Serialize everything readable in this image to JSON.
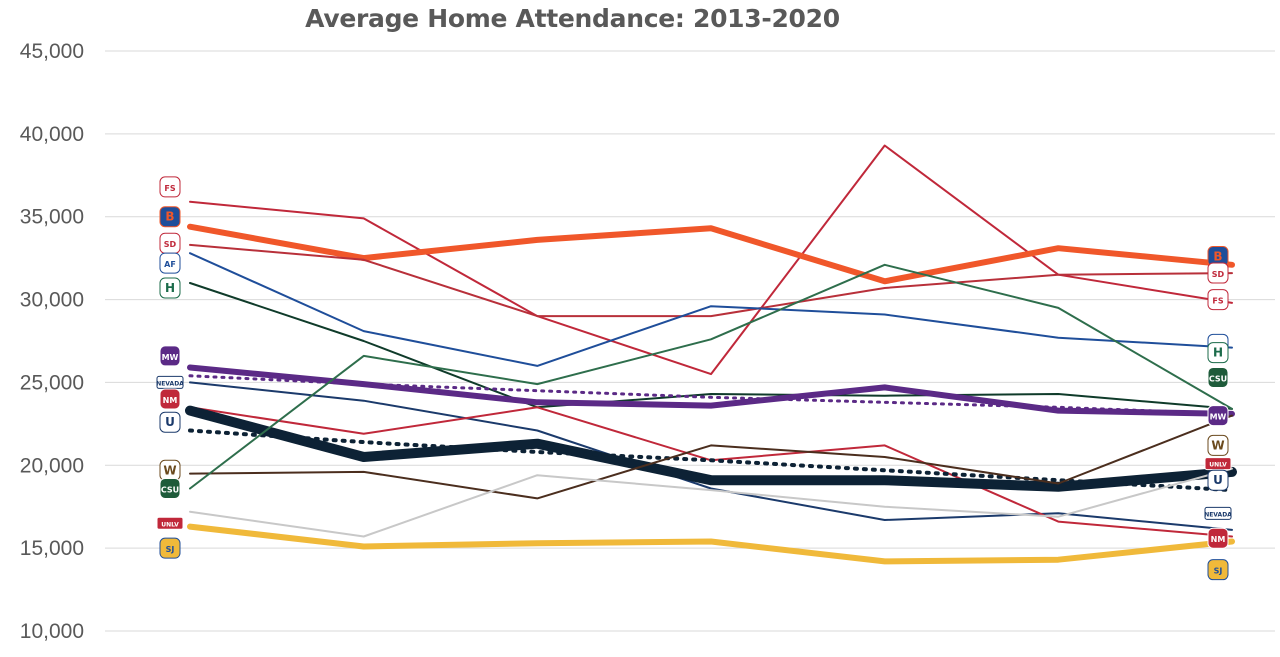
{
  "chart_data": {
    "type": "line",
    "title": "Average Home Attendance: 2013-2020",
    "xlabel": "",
    "ylabel": "",
    "ylim": [
      10000,
      45000
    ],
    "yticks": [
      "10,000",
      "15,000",
      "20,000",
      "25,000",
      "30,000",
      "35,000",
      "40,000",
      "45,000"
    ],
    "ytick_values": [
      10000,
      15000,
      20000,
      25000,
      30000,
      35000,
      40000,
      45000
    ],
    "x_count": 7,
    "grid": true,
    "legend": "team logos at line ends",
    "series": [
      {
        "logo": "fresno-state",
        "color": "#C0283A",
        "width": 2,
        "dash": "",
        "values": [
          35900,
          34900,
          29000,
          25500,
          39300,
          31500,
          29800
        ]
      },
      {
        "logo": "boise-state",
        "color": "#F0572A",
        "width": 6,
        "dash": "",
        "values": [
          34400,
          32500,
          33600,
          34300,
          31100,
          33100,
          32100
        ]
      },
      {
        "logo": "san-diego-state",
        "color": "#B8303A",
        "width": 2,
        "dash": "",
        "values": [
          33300,
          32400,
          29000,
          29000,
          30700,
          31500,
          31600
        ]
      },
      {
        "logo": "air-force",
        "color": "#1F4E9A",
        "width": 2,
        "dash": "",
        "values": [
          32800,
          28100,
          26000,
          29600,
          29100,
          27700,
          27100
        ]
      },
      {
        "logo": "hawaii",
        "color": "#0F3B2A",
        "width": 2,
        "dash": "",
        "values": [
          31000,
          27500,
          23500,
          24300,
          24200,
          24300,
          23400
        ]
      },
      {
        "logo": "mountain-west-avg",
        "color": "#5B2A86",
        "width": 6,
        "dash": "",
        "values": [
          25900,
          24900,
          23800,
          23600,
          24700,
          23300,
          23100
        ]
      },
      {
        "logo": "conference-trend",
        "color": "#5B2A86",
        "width": 3,
        "dash": "2,6",
        "values": [
          25400,
          24900,
          24500,
          24100,
          23800,
          23500,
          23100
        ]
      },
      {
        "logo": "nevada",
        "color": "#1B3A6B",
        "width": 2,
        "dash": "",
        "values": [
          25000,
          23900,
          22100,
          18600,
          16700,
          17100,
          16100
        ]
      },
      {
        "logo": "new-mexico",
        "color": "#C0283A",
        "width": 2,
        "dash": "",
        "values": [
          23500,
          21900,
          23500,
          20300,
          21200,
          16600,
          15700
        ]
      },
      {
        "logo": "fbs-average",
        "color": "#0D2235",
        "width": 10,
        "dash": "",
        "values": [
          23300,
          20500,
          21300,
          19100,
          19100,
          18700,
          19600
        ]
      },
      {
        "logo": "fbs-trend",
        "color": "#0D2235",
        "width": 4,
        "dash": "2,7",
        "values": [
          22100,
          21400,
          20800,
          20300,
          19700,
          19100,
          18500
        ]
      },
      {
        "logo": "wyoming",
        "color": "#4B2E1E",
        "width": 2,
        "dash": "",
        "values": [
          19500,
          19600,
          18000,
          21200,
          20500,
          18900,
          23000
        ]
      },
      {
        "logo": "colorado-state",
        "color": "#2E6E4C",
        "width": 2,
        "dash": "",
        "values": [
          18600,
          26600,
          24900,
          27600,
          32100,
          29500,
          23400
        ]
      },
      {
        "logo": "unlv",
        "color": "#C8C8C8",
        "width": 2,
        "dash": "",
        "values": [
          17200,
          15700,
          19400,
          18500,
          17500,
          16900,
          19800
        ]
      },
      {
        "logo": "san-jose-state",
        "color": "#F0B93A",
        "width": 6,
        "dash": "",
        "values": [
          16300,
          15100,
          15300,
          15400,
          14200,
          14300,
          15400
        ]
      }
    ]
  },
  "logos_left": [
    {
      "name": "fresno-state-logo",
      "text": "FS",
      "bg": "#ffffff",
      "fg": "#C0283A",
      "value": 36800
    },
    {
      "name": "boise-state-logo",
      "text": "B",
      "bg": "#1F4E9A",
      "fg": "#F0572A",
      "value": 35000
    },
    {
      "name": "san-diego-state-logo",
      "text": "SD",
      "bg": "#ffffff",
      "fg": "#C0283A",
      "value": 33400
    },
    {
      "name": "air-force-logo",
      "text": "AF",
      "bg": "#ffffff",
      "fg": "#1F4E9A",
      "value": 32200
    },
    {
      "name": "hawaii-logo",
      "text": "H",
      "bg": "#ffffff",
      "fg": "#1B6B4A",
      "value": 30700
    },
    {
      "name": "mountain-west-logo",
      "text": "MW",
      "bg": "#5B2A86",
      "fg": "#ffffff",
      "value": 26600
    },
    {
      "name": "nevada-logo",
      "text": "NEVADA",
      "bg": "#ffffff",
      "fg": "#1B3A6B",
      "value": 25000
    },
    {
      "name": "new-mexico-logo",
      "text": "NM",
      "bg": "#C0283A",
      "fg": "#ffffff",
      "value": 24000
    },
    {
      "name": "utah-state-logo",
      "text": "U",
      "bg": "#ffffff",
      "fg": "#1B3A6B",
      "value": 22600
    },
    {
      "name": "wyoming-logo",
      "text": "W",
      "bg": "#ffffff",
      "fg": "#6B4A1E",
      "value": 19700
    },
    {
      "name": "colorado-state-logo",
      "text": "CSU",
      "bg": "#1E5B3A",
      "fg": "#ffffff",
      "value": 18600
    },
    {
      "name": "unlv-logo",
      "text": "UNLV",
      "bg": "#C0283A",
      "fg": "#ffffff",
      "value": 16500
    },
    {
      "name": "san-jose-state-logo",
      "text": "SJ",
      "bg": "#F0B93A",
      "fg": "#1F4E9A",
      "value": 15000
    }
  ],
  "logos_right": [
    {
      "name": "boise-state-logo",
      "text": "B",
      "bg": "#1F4E9A",
      "fg": "#F0572A",
      "value": 32600
    },
    {
      "name": "san-diego-state-logo",
      "text": "SD",
      "bg": "#ffffff",
      "fg": "#C0283A",
      "value": 31600
    },
    {
      "name": "fresno-state-logo",
      "text": "FS",
      "bg": "#ffffff",
      "fg": "#C0283A",
      "value": 30000
    },
    {
      "name": "air-force-logo",
      "text": "AF",
      "bg": "#ffffff",
      "fg": "#1F4E9A",
      "value": 27300
    },
    {
      "name": "hawaii-logo",
      "text": "H",
      "bg": "#ffffff",
      "fg": "#1B6B4A",
      "value": 26800
    },
    {
      "name": "colorado-state-logo",
      "text": "CSU",
      "bg": "#1E5B3A",
      "fg": "#ffffff",
      "value": 25300
    },
    {
      "name": "mountain-west-logo",
      "text": "MW",
      "bg": "#5B2A86",
      "fg": "#ffffff",
      "value": 23000
    },
    {
      "name": "wyoming-logo",
      "text": "W",
      "bg": "#ffffff",
      "fg": "#6B4A1E",
      "value": 21200
    },
    {
      "name": "unlv-logo",
      "text": "UNLV",
      "bg": "#C0283A",
      "fg": "#ffffff",
      "value": 20100
    },
    {
      "name": "utah-state-logo",
      "text": "U",
      "bg": "#ffffff",
      "fg": "#1B3A6B",
      "value": 19100
    },
    {
      "name": "nevada-logo",
      "text": "NEVADA",
      "bg": "#ffffff",
      "fg": "#1B3A6B",
      "value": 17100
    },
    {
      "name": "new-mexico-logo",
      "text": "NM",
      "bg": "#C0283A",
      "fg": "#ffffff",
      "value": 15600
    },
    {
      "name": "san-jose-state-logo",
      "text": "SJ",
      "bg": "#F0B93A",
      "fg": "#1F4E9A",
      "value": 13700
    }
  ]
}
